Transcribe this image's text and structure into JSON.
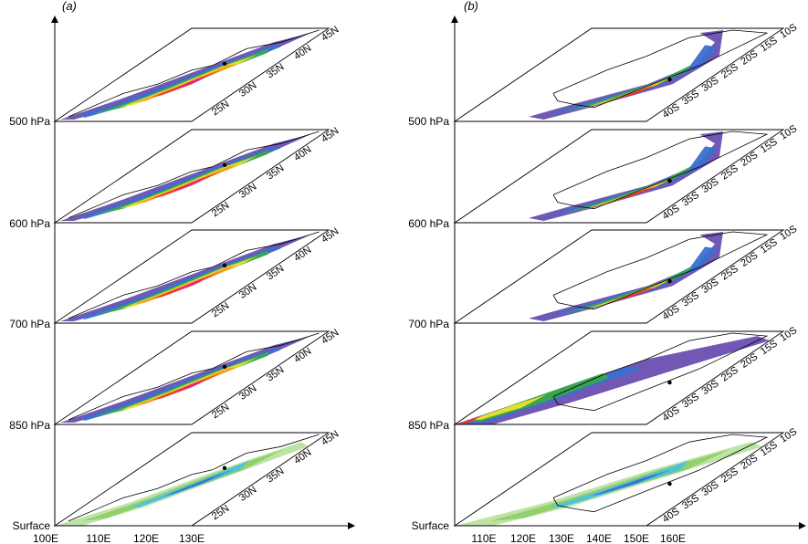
{
  "figure": {
    "colors": {
      "line": "#000000",
      "magenta": "#e8208c",
      "red": "#e8342a",
      "orange": "#f59a23",
      "yellow": "#f0e02a",
      "green": "#3aa84a",
      "lightgreen": "#8fcf6a",
      "cyan": "#4fc1d8",
      "blue": "#3a6fd0",
      "purple": "#6a4fb0",
      "paleGreen": "#b9e3a0"
    },
    "panels": [
      {
        "id": "a",
        "tag": "(a)",
        "x_ticks": [
          "100E",
          "110E",
          "120E",
          "130E"
        ],
        "y_ticks": [
          "25N",
          "30N",
          "35N",
          "40N",
          "45N"
        ],
        "levels": [
          {
            "label": "500 hPa",
            "field": "intense"
          },
          {
            "label": "600 hPa",
            "field": "intense"
          },
          {
            "label": "700 hPa",
            "field": "intense"
          },
          {
            "label": "850 hPa",
            "field": "intense"
          },
          {
            "label": "Surface",
            "field": "surface"
          }
        ]
      },
      {
        "id": "b",
        "tag": "(b)",
        "x_ticks": [
          "110E",
          "120E",
          "130E",
          "140E",
          "150E",
          "160E"
        ],
        "y_ticks": [
          "40S",
          "35S",
          "30S",
          "25S",
          "20S",
          "15S",
          "10S"
        ],
        "levels": [
          {
            "label": "500 hPa",
            "field": "band"
          },
          {
            "label": "600 hPa",
            "field": "band"
          },
          {
            "label": "700 hPa",
            "field": "band"
          },
          {
            "label": "850 hPa",
            "field": "wide"
          },
          {
            "label": "Surface",
            "field": "surface"
          }
        ]
      }
    ]
  }
}
